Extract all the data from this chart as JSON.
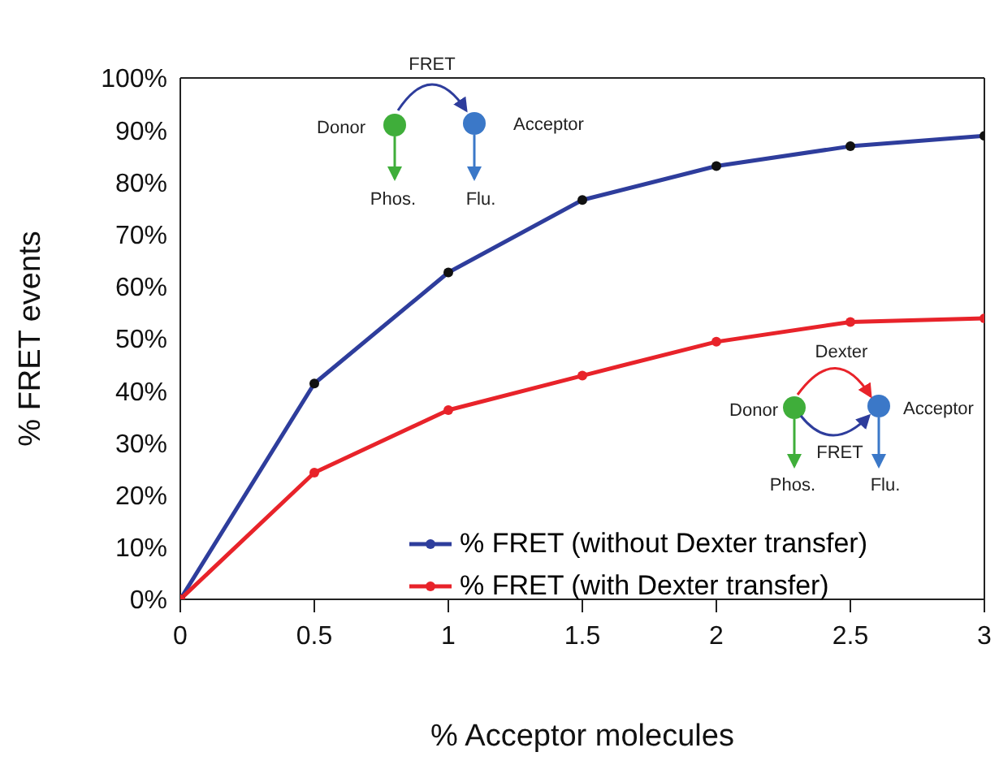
{
  "chart_data": {
    "type": "line",
    "xlabel": "% Acceptor molecules",
    "ylabel": "% FRET events",
    "x": [
      0,
      0.5,
      1,
      1.5,
      2,
      2.5,
      3
    ],
    "series": [
      {
        "name": "% FRET (without Dexter transfer)",
        "color": "#2e3d9c",
        "values": [
          0,
          41.4,
          62.7,
          76.6,
          83.1,
          86.9,
          88.9
        ]
      },
      {
        "name": "% FRET (with Dexter transfer)",
        "color": "#e8232a",
        "values": [
          0,
          24.3,
          36.3,
          42.9,
          49.4,
          53.2,
          53.9
        ]
      }
    ],
    "xlim": [
      0,
      3
    ],
    "xticks": [
      0,
      0.5,
      1,
      1.5,
      2,
      2.5,
      3
    ],
    "ylim": [
      0,
      100
    ],
    "yticks": [
      {
        "value": 0,
        "label": "0%"
      },
      {
        "value": 10,
        "label": "10%"
      },
      {
        "value": 20,
        "label": "20%"
      },
      {
        "value": 30,
        "label": "30%"
      },
      {
        "value": 40,
        "label": "40%"
      },
      {
        "value": 50,
        "label": "50%"
      },
      {
        "value": 60,
        "label": "60%"
      },
      {
        "value": 70,
        "label": "70%"
      },
      {
        "value": 80,
        "label": "80%"
      },
      {
        "value": 90,
        "label": "90%"
      },
      {
        "value": 100,
        "label": "100%"
      }
    ],
    "grid": false,
    "legend": "bottom right",
    "marker": "circle",
    "line_style": "solid",
    "annotations": [
      "FRET",
      "Donor",
      "Acceptor",
      "Phos.",
      "Flu.",
      "Dexter",
      "Donor",
      "FRET",
      "Acceptor",
      "Phos.",
      "Flu."
    ]
  }
}
